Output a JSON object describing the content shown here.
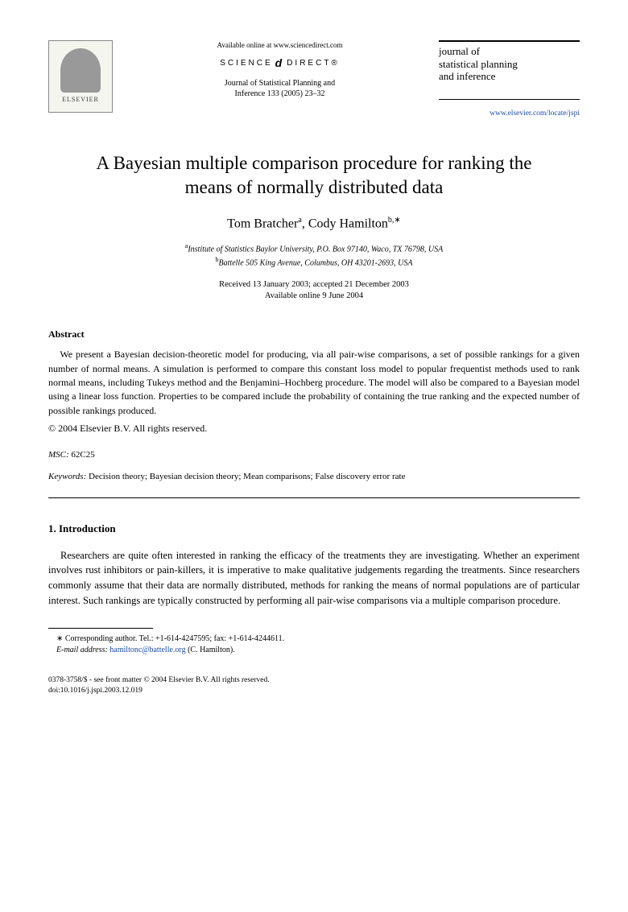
{
  "header": {
    "elsevier_label": "ELSEVIER",
    "available_online": "Available online at www.sciencedirect.com",
    "sciencedirect_left": "SCIENCE",
    "sciencedirect_right": "DIRECT®",
    "journal_ref_line1": "Journal of Statistical Planning and",
    "journal_ref_line2": "Inference 133 (2005) 23–32",
    "journal_title_line1": "journal of",
    "journal_title_line2": "statistical planning",
    "journal_title_line3": "and inference",
    "journal_link": "www.elsevier.com/locate/jspi"
  },
  "title": "A Bayesian multiple comparison procedure for ranking the means of normally distributed data",
  "authors": {
    "author1_name": "Tom Bratcher",
    "author1_sup": "a",
    "author2_name": "Cody Hamilton",
    "author2_sup": "b,∗"
  },
  "affiliations": {
    "a": "Institute of Statistics Baylor University, P.O. Box 97140, Waco, TX 76798, USA",
    "b": "Battelle 505 King Avenue, Columbus, OH 43201-2693, USA"
  },
  "dates": {
    "received": "Received 13 January 2003; accepted 21 December 2003",
    "online": "Available online 9 June 2004"
  },
  "abstract": {
    "heading": "Abstract",
    "text": "We present a Bayesian decision-theoretic model for producing, via all pair-wise comparisons, a set of possible rankings for a given number of normal means. A simulation is performed to compare this constant loss model to popular frequentist methods used to rank normal means, including Tukeys method and the Benjamini–Hochberg procedure. The model will also be compared to a Bayesian model using a linear loss function. Properties to be compared include the probability of containing the true ranking and the expected number of possible rankings produced.",
    "copyright": "© 2004 Elsevier B.V. All rights reserved."
  },
  "msc": {
    "label": "MSC:",
    "value": "62C25"
  },
  "keywords": {
    "label": "Keywords:",
    "value": "Decision theory; Bayesian decision theory; Mean comparisons; False discovery error rate"
  },
  "intro": {
    "heading": "1. Introduction",
    "text": "Researchers are quite often interested in ranking the efficacy of the treatments they are investigating. Whether an experiment involves rust inhibitors or pain-killers, it is imperative to make qualitative judgements regarding the treatments. Since researchers commonly assume that their data are normally distributed, methods for ranking the means of normal populations are of particular interest. Such rankings are typically constructed by performing all pair-wise comparisons via a multiple comparison procedure."
  },
  "footnote": {
    "corr": "∗ Corresponding author. Tel.: +1-614-4247595; fax: +1-614-4244611.",
    "email_label": "E-mail address:",
    "email": "hamiltonc@battelle.org",
    "email_author": "(C. Hamilton)."
  },
  "footer": {
    "line1": "0378-3758/$ - see front matter © 2004 Elsevier B.V. All rights reserved.",
    "line2": "doi:10.1016/j.jspi.2003.12.019"
  },
  "colors": {
    "link": "#1a4ba8",
    "text": "#000000",
    "background": "#ffffff"
  }
}
